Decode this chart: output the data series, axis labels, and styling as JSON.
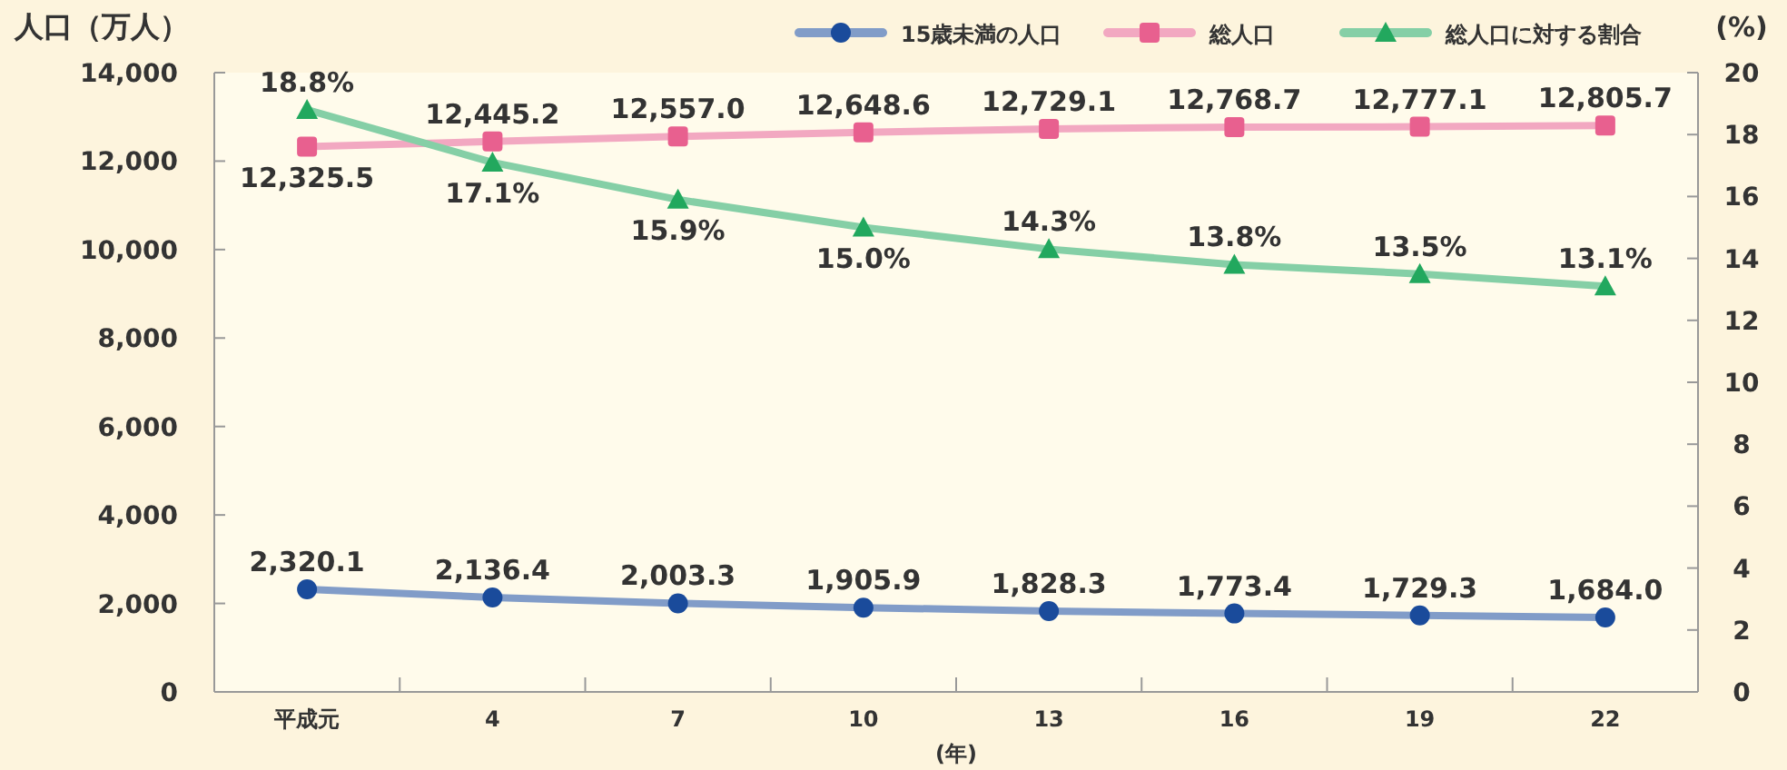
{
  "chart_data": {
    "type": "line",
    "ylabel": "人口（万人）",
    "y2label": "(%)",
    "xlabel": "(年)",
    "categories": [
      "平成元",
      "4",
      "7",
      "10",
      "13",
      "16",
      "19",
      "22"
    ],
    "series": [
      {
        "name": "15歳未満の人口",
        "color": "#1a4b9b",
        "marker": "circle",
        "values": [
          2320.1,
          2136.4,
          2003.3,
          1905.9,
          1828.3,
          1773.4,
          1729.3,
          1684.0
        ],
        "value_labels": [
          "2,320.1",
          "2,136.4",
          "2,003.3",
          "1,905.9",
          "1,828.3",
          "1,773.4",
          "1,729.3",
          "1,684.0"
        ]
      },
      {
        "name": "総人口",
        "color": "#e8608f",
        "marker": "square",
        "values": [
          12325.5,
          12445.2,
          12557.0,
          12648.6,
          12729.1,
          12768.7,
          12777.1,
          12805.7
        ],
        "value_labels": [
          "12,325.5",
          "12,445.2",
          "12,557.0",
          "12,648.6",
          "12,729.1",
          "12,768.7",
          "12,777.1",
          "12,805.7"
        ]
      },
      {
        "name": "総人口に対する割合",
        "color": "#22a85e",
        "marker": "triangle",
        "axis": "y2",
        "values": [
          18.8,
          17.1,
          15.9,
          15.0,
          14.3,
          13.8,
          13.5,
          13.1
        ],
        "value_labels": [
          "18.8%",
          "17.1%",
          "15.9%",
          "15.0%",
          "14.3%",
          "13.8%",
          "13.5%",
          "13.1%"
        ]
      }
    ],
    "ylim": [
      0,
      14000
    ],
    "yticks": [
      0,
      {
        "value": 2000,
        "label": "2,000"
      },
      {
        "value": 4000,
        "label": "4,000"
      },
      {
        "value": 6000,
        "label": "6,000"
      },
      {
        "value": 8000,
        "label": "8,000"
      },
      {
        "value": 10000,
        "label": "10,000"
      },
      {
        "value": 12000,
        "label": "12,000"
      },
      {
        "value": 14000,
        "label": "14,000"
      }
    ],
    "y2lim": [
      0,
      20
    ],
    "y2ticks": [
      0,
      2,
      4,
      6,
      8,
      10,
      12,
      14,
      16,
      18,
      20
    ],
    "legend": "top right",
    "grid": false,
    "line_style": "solid"
  }
}
